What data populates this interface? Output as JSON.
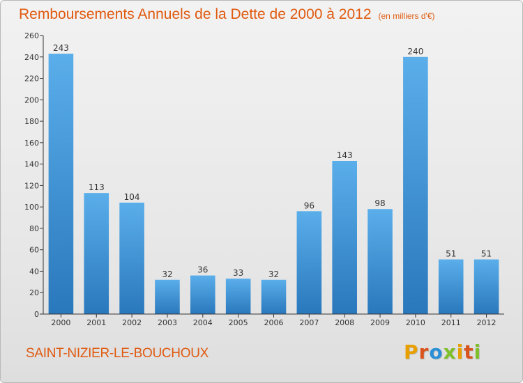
{
  "header": {
    "title": "Remboursements Annuels de la Dette de 2000 à 2012",
    "subtitle": "(en milliers d'€)"
  },
  "footer": {
    "commune": "SAINT-NIZIER-LE-BOUCHOUX",
    "logo_letters": [
      "P",
      "r",
      "o",
      "x",
      "i",
      "t",
      "i"
    ],
    "logo_colors": [
      "#e8a000",
      "#d9531e",
      "#2a8fd6",
      "#7fbf2a",
      "#e8a000",
      "#d9531e",
      "#7fbf2a"
    ]
  },
  "chart_data": {
    "type": "bar",
    "categories": [
      "2000",
      "2001",
      "2002",
      "2003",
      "2004",
      "2005",
      "2006",
      "2007",
      "2008",
      "2009",
      "2010",
      "2011",
      "2012"
    ],
    "values": [
      243,
      113,
      104,
      32,
      36,
      33,
      32,
      96,
      143,
      98,
      240,
      51,
      51
    ],
    "ylim": [
      0,
      260
    ],
    "yticks": [
      0,
      20,
      40,
      60,
      80,
      100,
      120,
      140,
      160,
      180,
      200,
      220,
      240,
      260
    ],
    "grid": false,
    "colors": {
      "bar_top": "#5aaeea",
      "bar_bottom": "#2a78bc",
      "label": "#333333",
      "axis": "#333333"
    }
  }
}
